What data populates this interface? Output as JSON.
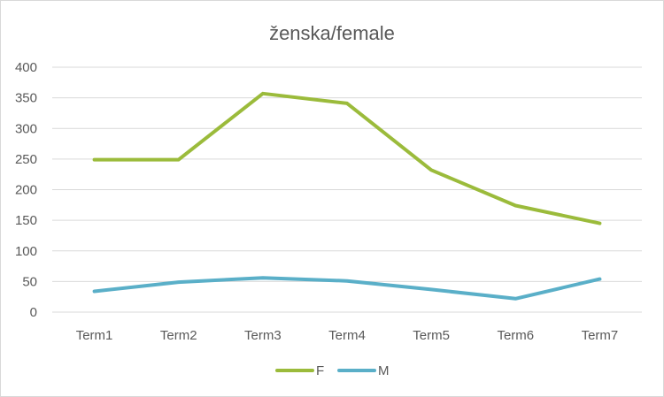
{
  "chart_data": {
    "type": "line",
    "title": "ženska/female",
    "xlabel": "",
    "ylabel": "",
    "categories": [
      "Term1",
      "Term2",
      "Term3",
      "Term4",
      "Term5",
      "Term6",
      "Term7"
    ],
    "ylim": [
      0,
      400
    ],
    "yticks": [
      0,
      50,
      100,
      150,
      200,
      250,
      300,
      350,
      400
    ],
    "grid": true,
    "legend": "bottom",
    "series": [
      {
        "name": "F",
        "color": "#9bbb3b",
        "values": [
          249,
          249,
          357,
          341,
          232,
          174,
          145
        ]
      },
      {
        "name": "M",
        "color": "#5aafc8",
        "values": [
          34,
          49,
          56,
          51,
          37,
          22,
          54
        ]
      }
    ]
  }
}
